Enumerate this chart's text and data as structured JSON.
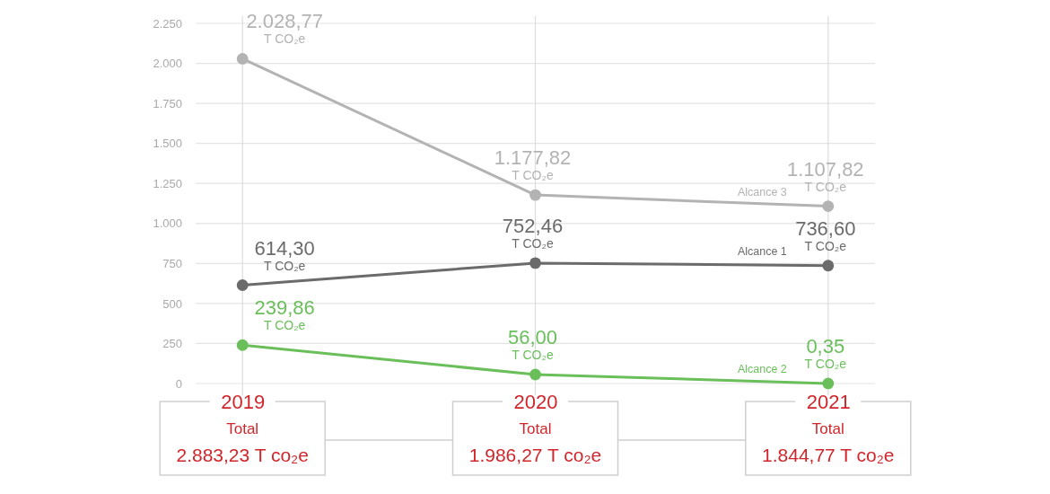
{
  "chart_data": {
    "type": "line",
    "categories": [
      "2019",
      "2020",
      "2021"
    ],
    "series": [
      {
        "name": "Alcance 3",
        "color": "#b3b3b3",
        "values": [
          2028.77,
          1177.82,
          1107.82
        ],
        "value_labels": [
          "2.028,77\nT CO₂e",
          "1.177,82\nT CO₂e",
          "1.107,82\nT CO₂e"
        ]
      },
      {
        "name": "Alcance 1",
        "color": "#6b6b6b",
        "values": [
          614.3,
          752.46,
          736.6
        ],
        "value_labels": [
          "614,30\nT CO₂e",
          "752,46\nT CO₂e",
          "736,60\nT CO₂e"
        ]
      },
      {
        "name": "Alcance 2",
        "color": "#6abf5b",
        "values": [
          239.86,
          56.0,
          0.35
        ],
        "value_labels": [
          "239,86\nT CO₂e",
          "56,00\nT CO₂e",
          "0,35\nT CO₂e"
        ]
      }
    ],
    "ylim": [
      0,
      2250
    ],
    "yticks": [
      0,
      250,
      500,
      750,
      {
        "value": 1000,
        "label": "1.000"
      },
      {
        "value": 1250,
        "label": "1.250"
      },
      {
        "value": 1500,
        "label": "1.500"
      },
      {
        "value": 1750,
        "label": "1.750"
      },
      {
        "value": 2000,
        "label": "2.000"
      },
      {
        "value": 2250,
        "label": "2.250"
      }
    ],
    "grid": true,
    "marker": "circle",
    "totals": [
      "Total\n2.883,23 T co₂e",
      "Total\n1.986,27 T co₂e",
      "Total\n1.844,77 T co₂e"
    ]
  }
}
